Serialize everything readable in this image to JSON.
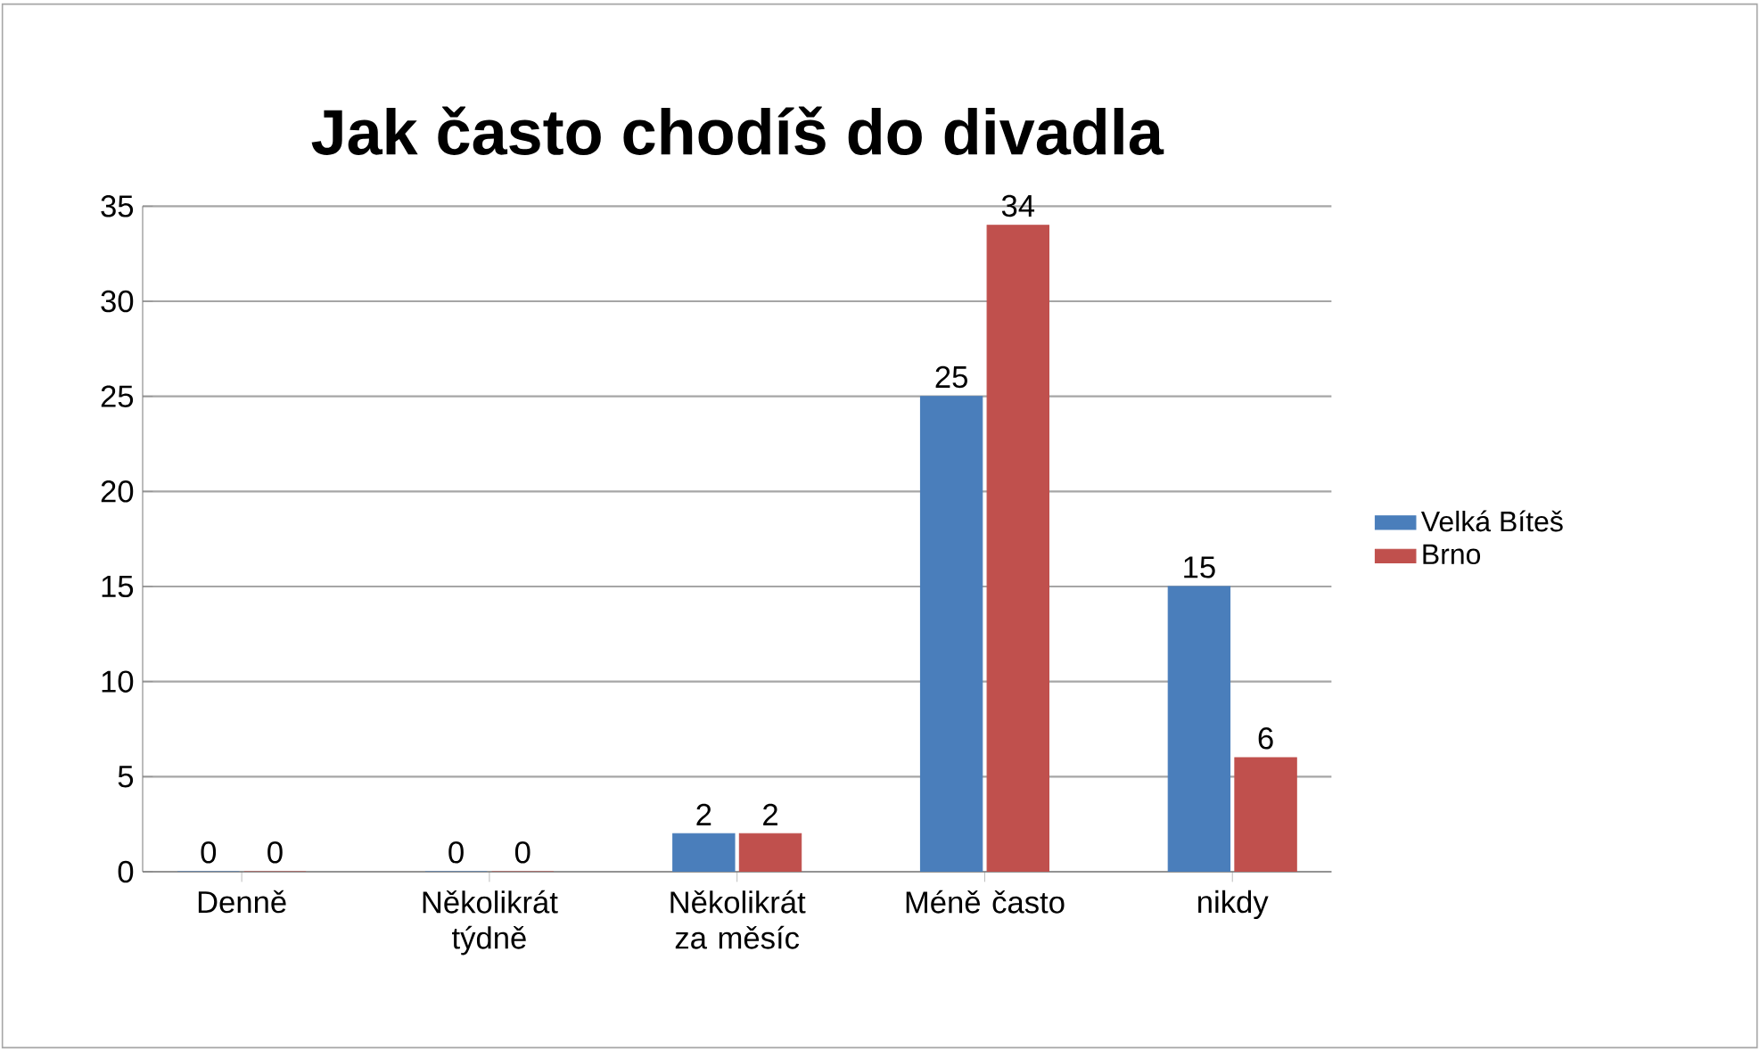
{
  "chart_data": {
    "type": "bar",
    "title": "Jak často chodíš do divadla",
    "categories": [
      "Denně",
      "Několikrát týdně",
      "Několikrát za měsíc",
      "Méně často",
      "nikdy"
    ],
    "series": [
      {
        "name": "Velká Bíteš",
        "color": "#4a7ebb",
        "values": [
          0,
          0,
          2,
          25,
          15
        ]
      },
      {
        "name": "Brno",
        "color": "#c0504d",
        "values": [
          0,
          0,
          2,
          34,
          6
        ]
      }
    ],
    "ylim": [
      0,
      35
    ],
    "yticks": [
      0,
      5,
      10,
      15,
      20,
      25,
      30,
      35
    ],
    "grid": "y",
    "legend": "right",
    "data_labels": true
  }
}
